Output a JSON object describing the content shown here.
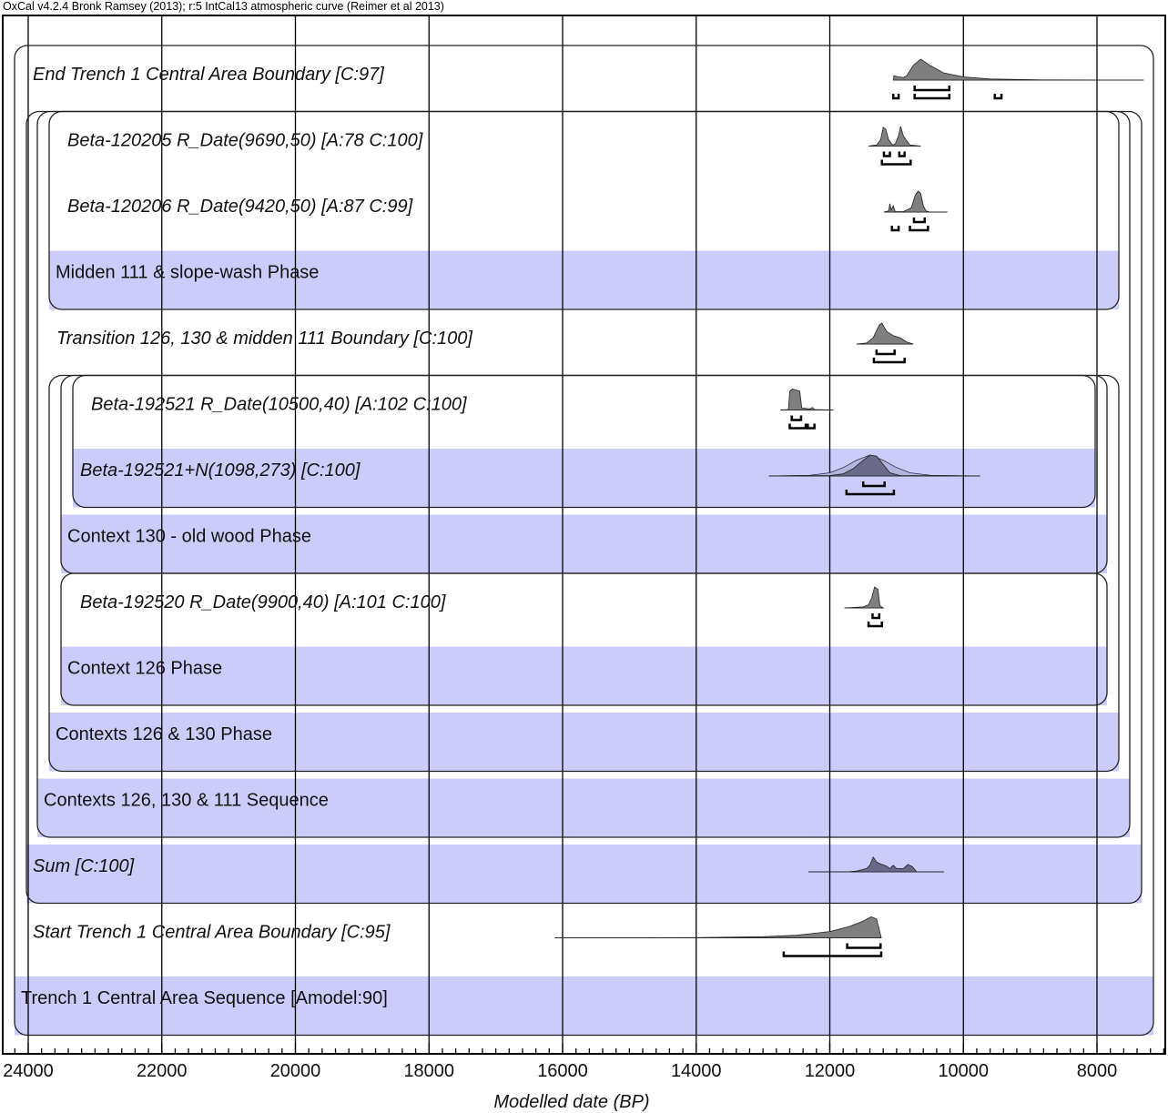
{
  "header": "OxCal v4.2.4 Bronk Ramsey (2013); r:5 IntCal13 atmospheric curve (Reimer et al 2013)",
  "chart_data": {
    "type": "area",
    "xlabel": "Modelled date (BP)",
    "xlim": [
      24380,
      6980
    ],
    "x_ticks": [
      24000,
      22000,
      20000,
      18000,
      16000,
      14000,
      12000,
      10000,
      8000
    ],
    "minor_tick_step": 200,
    "grid": true,
    "colors": {
      "band": "#ccccfa",
      "posterior": "#7f7f7f",
      "sum": "#6a6a88",
      "prior": "#b4b4e0",
      "frame": "#000000"
    },
    "rows": [
      {
        "label": "End Trench 1 Central Area Boundary [C:97]",
        "italic": true,
        "shaded": false,
        "dist": [
          [
            11050,
            0
          ],
          [
            11040,
            0.2
          ],
          [
            10970,
            0.15
          ],
          [
            10900,
            0.12
          ],
          [
            10850,
            0.2
          ],
          [
            10750,
            0.7
          ],
          [
            10640,
            1
          ],
          [
            10500,
            0.7
          ],
          [
            10300,
            0.35
          ],
          [
            10000,
            0.15
          ],
          [
            9600,
            0.05
          ],
          [
            9000,
            0.02
          ],
          [
            8800,
            0.01
          ],
          [
            8000,
            0.005
          ],
          [
            7300,
            0
          ]
        ],
        "r68": [
          [
            10730,
            10210
          ]
        ],
        "r95": [
          [
            11050,
            10970
          ],
          [
            10730,
            10210
          ],
          [
            9530,
            9430
          ]
        ]
      },
      {
        "label": "Beta-120205 R_Date(9690,50) [A:78 C:100]",
        "italic": true,
        "shaded": false,
        "dist": [
          [
            11420,
            0
          ],
          [
            11300,
            0.05
          ],
          [
            11240,
            0.3
          ],
          [
            11200,
            0.9
          ],
          [
            11160,
            0.8
          ],
          [
            11120,
            0.3
          ],
          [
            11060,
            0.05
          ],
          [
            11020,
            0.1
          ],
          [
            10970,
            0.5
          ],
          [
            10940,
            0.95
          ],
          [
            10900,
            0.5
          ],
          [
            10860,
            0.3
          ],
          [
            10800,
            0.05
          ],
          [
            10640,
            0
          ]
        ],
        "r68": [
          [
            11190,
            11100
          ],
          [
            10960,
            10880
          ]
        ],
        "r95": [
          [
            11220,
            10790
          ]
        ]
      },
      {
        "label": "Beta-120206 R_Date(9420,50) [A:87 C:99]",
        "italic": true,
        "shaded": false,
        "dist": [
          [
            11190,
            0
          ],
          [
            11120,
            0.05
          ],
          [
            11100,
            0.4
          ],
          [
            11080,
            0.1
          ],
          [
            11050,
            0.3
          ],
          [
            11020,
            0.02
          ],
          [
            10900,
            0.02
          ],
          [
            10780,
            0.2
          ],
          [
            10720,
            0.8
          ],
          [
            10680,
            1
          ],
          [
            10640,
            0.9
          ],
          [
            10600,
            0.3
          ],
          [
            10560,
            0.05
          ],
          [
            10500,
            0
          ],
          [
            10240,
            0
          ]
        ],
        "r68": [
          [
            10740,
            10580
          ]
        ],
        "r95": [
          [
            11070,
            10970
          ],
          [
            10800,
            10530
          ]
        ]
      },
      {
        "label": "Midden 111 & slope-wash Phase",
        "italic": false,
        "shaded": true
      },
      {
        "label": "Transition 126, 130 & midden 111 Boundary [C:100]",
        "italic": true,
        "shaded": false,
        "dist": [
          [
            11600,
            0
          ],
          [
            11450,
            0.05
          ],
          [
            11350,
            0.3
          ],
          [
            11260,
            0.9
          ],
          [
            11220,
            1
          ],
          [
            11150,
            0.6
          ],
          [
            11050,
            0.4
          ],
          [
            10950,
            0.3
          ],
          [
            10850,
            0.1
          ],
          [
            10750,
            0
          ]
        ],
        "r68": [
          [
            11300,
            11030
          ]
        ],
        "r95": [
          [
            11340,
            10880
          ]
        ]
      },
      {
        "label": "Beta-192521 R_Date(10500,40) [A:102 C:100]",
        "italic": true,
        "shaded": false,
        "dist": [
          [
            12740,
            0
          ],
          [
            12620,
            0.02
          ],
          [
            12600,
            0.9
          ],
          [
            12560,
            1
          ],
          [
            12450,
            0.9
          ],
          [
            12420,
            0.1
          ],
          [
            12300,
            0.05
          ],
          [
            12260,
            0.12
          ],
          [
            12230,
            0.02
          ],
          [
            11950,
            0
          ]
        ],
        "r68": [
          [
            12570,
            12430
          ]
        ],
        "r95": [
          [
            12600,
            12360
          ],
          [
            12330,
            12230
          ]
        ]
      },
      {
        "label": "Beta-192521+N(1098,273) [C:100]",
        "italic": true,
        "shaded": true,
        "prior": [
          [
            12910,
            0
          ],
          [
            12300,
            0.03
          ],
          [
            12000,
            0.15
          ],
          [
            11800,
            0.4
          ],
          [
            11600,
            0.75
          ],
          [
            11400,
            1
          ],
          [
            11200,
            0.75
          ],
          [
            11000,
            0.4
          ],
          [
            10800,
            0.15
          ],
          [
            10500,
            0.03
          ],
          [
            9750,
            0
          ]
        ],
        "dist": [
          [
            12910,
            0
          ],
          [
            12000,
            0.02
          ],
          [
            11800,
            0.1
          ],
          [
            11650,
            0.35
          ],
          [
            11500,
            0.75
          ],
          [
            11400,
            1
          ],
          [
            11300,
            0.95
          ],
          [
            11200,
            0.55
          ],
          [
            11100,
            0.15
          ],
          [
            10950,
            0.02
          ],
          [
            9750,
            0
          ]
        ],
        "r68": [
          [
            11500,
            11180
          ]
        ],
        "r95": [
          [
            11750,
            11040
          ]
        ]
      },
      {
        "label": "Context 130 - old wood Phase",
        "italic": false,
        "shaded": true
      },
      {
        "label": "Beta-192520 R_Date(9900,40) [A:101 C:100]",
        "italic": true,
        "shaded": false,
        "dist": [
          [
            11780,
            0
          ],
          [
            11500,
            0.05
          ],
          [
            11420,
            0.15
          ],
          [
            11370,
            0.5
          ],
          [
            11330,
            1
          ],
          [
            11280,
            0.9
          ],
          [
            11250,
            0.1
          ],
          [
            11200,
            0
          ]
        ],
        "r68": [
          [
            11360,
            11260
          ]
        ],
        "r95": [
          [
            11420,
            11220
          ]
        ]
      },
      {
        "label": "Context 126 Phase",
        "italic": false,
        "shaded": true
      },
      {
        "label": "Contexts 126 & 130 Phase",
        "italic": false,
        "shaded": true
      },
      {
        "label": "Contexts 126, 130 & 111 Sequence",
        "italic": false,
        "shaded": true
      },
      {
        "label": "Sum [C:100]",
        "italic": true,
        "shaded": true,
        "sum": true,
        "dist": [
          [
            12320,
            0
          ],
          [
            11700,
            0.01
          ],
          [
            11600,
            0.05
          ],
          [
            11450,
            0.2
          ],
          [
            11400,
            0.4
          ],
          [
            11350,
            0.9
          ],
          [
            11300,
            0.6
          ],
          [
            11250,
            0.5
          ],
          [
            11150,
            0.35
          ],
          [
            11100,
            0.2
          ],
          [
            11050,
            0.4
          ],
          [
            11000,
            0.2
          ],
          [
            10900,
            0.2
          ],
          [
            10830,
            0.45
          ],
          [
            10760,
            0.3
          ],
          [
            10700,
            0
          ],
          [
            10290,
            0
          ]
        ]
      },
      {
        "label": "Start Trench 1 Central Area Boundary [C:95]",
        "italic": true,
        "shaded": false,
        "dist": [
          [
            16120,
            0
          ],
          [
            14000,
            0.01
          ],
          [
            13000,
            0.05
          ],
          [
            12500,
            0.12
          ],
          [
            12000,
            0.3
          ],
          [
            11700,
            0.55
          ],
          [
            11500,
            0.8
          ],
          [
            11380,
            1
          ],
          [
            11300,
            0.9
          ],
          [
            11230,
            0
          ]
        ],
        "r68": [
          [
            11740,
            11240
          ]
        ],
        "r95": [
          [
            12690,
            11230
          ]
        ]
      },
      {
        "label": "Trench 1 Central Area Sequence [Amodel:90]",
        "italic": false,
        "shaded": true
      }
    ]
  }
}
